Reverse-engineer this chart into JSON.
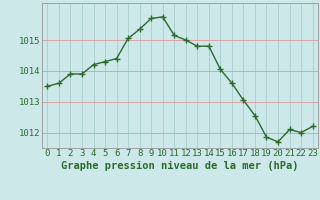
{
  "x": [
    0,
    1,
    2,
    3,
    4,
    5,
    6,
    7,
    8,
    9,
    10,
    11,
    12,
    13,
    14,
    15,
    16,
    17,
    18,
    19,
    20,
    21,
    22,
    23
  ],
  "y": [
    1013.5,
    1013.6,
    1013.9,
    1013.9,
    1014.2,
    1014.3,
    1014.4,
    1015.05,
    1015.35,
    1015.7,
    1015.75,
    1015.15,
    1015.0,
    1014.8,
    1014.8,
    1014.05,
    1013.6,
    1013.05,
    1012.55,
    1011.85,
    1011.7,
    1012.1,
    1012.0,
    1012.2
  ],
  "line_color": "#2d6a2d",
  "marker": "+",
  "bg_color": "#cce8e8",
  "grid_color": "#aacccc",
  "grid_red_color": "#dd9999",
  "xtick_color": "#2d6a2d",
  "ytick_color": "#2d6a2d",
  "xlabel": "Graphe pression niveau de la mer (hPa)",
  "xlabel_color": "#2d6a2d",
  "ylim": [
    1011.5,
    1016.2
  ],
  "xlim": [
    -0.5,
    23.5
  ],
  "tick_fontsize": 6.5,
  "xlabel_fontsize": 7.5
}
